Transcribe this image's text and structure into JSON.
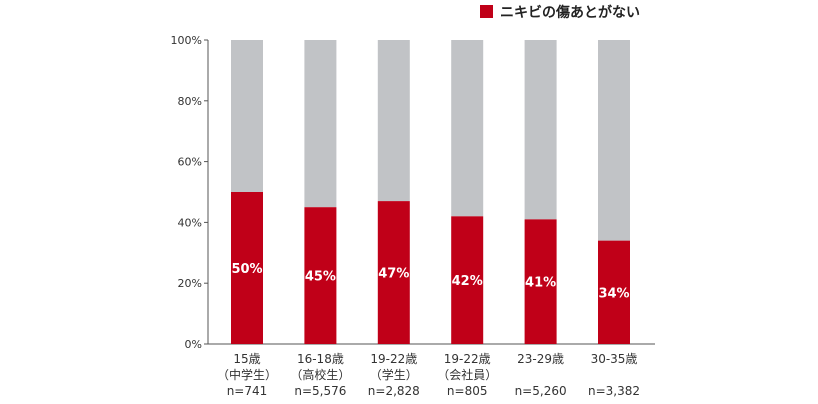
{
  "chart_data": {
    "type": "bar",
    "stacked": true,
    "legend": {
      "position": "top-right",
      "label": "ニキビの傷あとがない",
      "color": "#c00018"
    },
    "y_ticks": [
      "100%",
      "80%",
      "60%",
      "40%",
      "20%",
      "0%"
    ],
    "ylim": [
      0,
      100
    ],
    "grid": false,
    "categories": [
      {
        "line1": "15歳",
        "line2": "（中学生）",
        "line3": "n=741"
      },
      {
        "line1": "16-18歳",
        "line2": "（高校生）",
        "line3": "n=5,576"
      },
      {
        "line1": "19-22歳",
        "line2": "（学生）",
        "line3": "n=2,828"
      },
      {
        "line1": "19-22歳",
        "line2": "（会社員）",
        "line3": "n=805"
      },
      {
        "line1": "23-29歳",
        "line2": "",
        "line3": "n=5,260"
      },
      {
        "line1": "30-35歳",
        "line2": "",
        "line3": "n=3,382"
      }
    ],
    "values": [
      50,
      45,
      47,
      42,
      41,
      34
    ],
    "value_labels": [
      "50%",
      "45%",
      "47%",
      "42%",
      "41%",
      "34%"
    ],
    "series_colors": {
      "value": "#c00018",
      "remainder": "#c1c3c6"
    }
  }
}
